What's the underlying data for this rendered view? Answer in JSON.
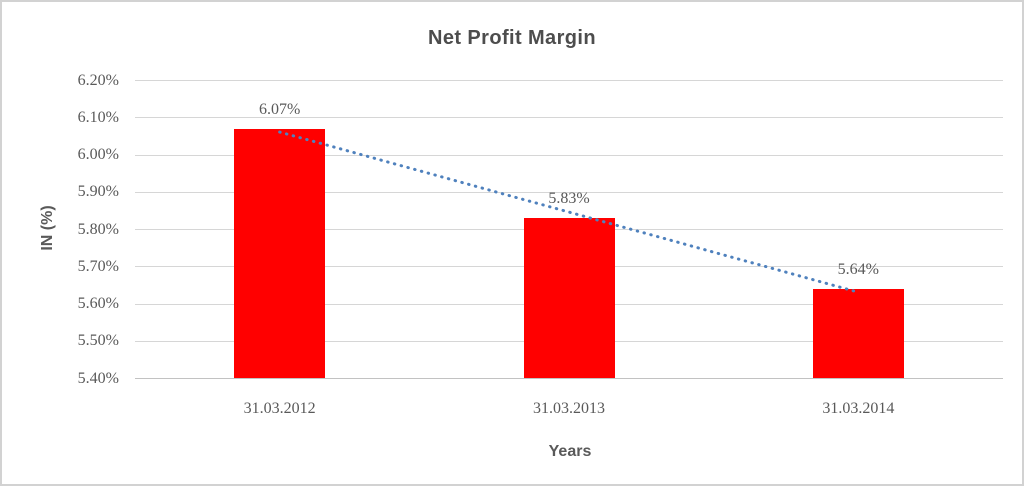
{
  "frame": {
    "background_color": "#ffffff",
    "border_color": "#d2d2d2"
  },
  "chart_data": {
    "type": "bar",
    "title": "Net Profit Margin",
    "xlabel": "Years",
    "ylabel": "IN (%)",
    "categories": [
      "31.03.2012",
      "31.03.2013",
      "31.03.2014"
    ],
    "values": [
      6.07,
      5.83,
      5.64
    ],
    "data_labels": [
      "6.07%",
      "5.83%",
      "5.64%"
    ],
    "ytick_labels": [
      "6.20%",
      "6.10%",
      "6.00%",
      "5.90%",
      "5.80%",
      "5.70%",
      "5.60%",
      "5.50%",
      "5.40%"
    ],
    "ylim": [
      5.4,
      6.2
    ],
    "ytick_step": 0.1,
    "grid": true,
    "legend_position": "none",
    "bar_color": "#ff0000",
    "trendline": {
      "type": "linear",
      "style": "dotted",
      "color": "#4f81bd"
    },
    "text_color": "#595959",
    "title_color": "#4d4d4d",
    "gridline_color": "#d6d6d6",
    "baseline_color": "#c2c2c2"
  }
}
